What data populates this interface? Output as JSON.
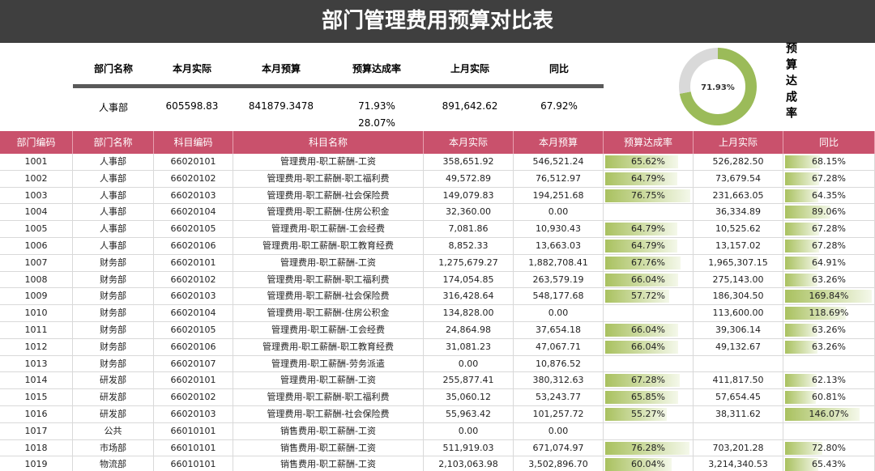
{
  "title": "部门管理费用预算对比表",
  "summary": {
    "headers": [
      "部门名称",
      "本月实际",
      "本月预算",
      "预算达成率",
      "上月实际",
      "同比"
    ],
    "values": [
      "人事部",
      "605598.83",
      "841879.3478",
      "71.93%",
      "891,642.62",
      "67.92%"
    ],
    "remainder": "28.07%"
  },
  "donut": {
    "values": [
      71.93,
      28.07
    ],
    "value_labels": [
      "71.93%"
    ],
    "colors": [
      "#9bbb59",
      "#d9d9d9"
    ]
  },
  "side_label": "预算达成率",
  "table": {
    "columns": [
      "部门编码",
      "部门名称",
      "科目编码",
      "科目名称",
      "本月实际",
      "本月预算",
      "预算达成率",
      "上月实际",
      "同比"
    ],
    "rows": [
      [
        "1001",
        "人事部",
        "66020101",
        "管理费用-职工薪酬-工资",
        "358,651.92",
        "546,521.24",
        {
          "value": 65.62,
          "label": "65.62%"
        },
        "526,282.50",
        {
          "value": 68.15,
          "label": "68.15%"
        }
      ],
      [
        "1002",
        "人事部",
        "66020102",
        "管理费用-职工薪酬-职工福利费",
        "49,572.89",
        "76,512.97",
        {
          "value": 64.79,
          "label": "64.79%"
        },
        "73,679.54",
        {
          "value": 67.28,
          "label": "67.28%"
        }
      ],
      [
        "1003",
        "人事部",
        "66020103",
        "管理费用-职工薪酬-社会保险费",
        "149,079.83",
        "194,251.68",
        {
          "value": 76.75,
          "label": "76.75%"
        },
        "231,663.05",
        {
          "value": 64.35,
          "label": "64.35%"
        }
      ],
      [
        "1004",
        "人事部",
        "66020104",
        "管理费用-职工薪酬-住房公积金",
        "32,360.00",
        "0.00",
        null,
        "36,334.89",
        {
          "value": 89.06,
          "label": "89.06%"
        }
      ],
      [
        "1005",
        "人事部",
        "66020105",
        "管理费用-职工薪酬-工会经费",
        "7,081.86",
        "10,930.43",
        {
          "value": 64.79,
          "label": "64.79%"
        },
        "10,525.62",
        {
          "value": 67.28,
          "label": "67.28%"
        }
      ],
      [
        "1006",
        "人事部",
        "66020106",
        "管理费用-职工薪酬-职工教育经费",
        "8,852.33",
        "13,663.03",
        {
          "value": 64.79,
          "label": "64.79%"
        },
        "13,157.02",
        {
          "value": 67.28,
          "label": "67.28%"
        }
      ],
      [
        "1007",
        "财务部",
        "66020101",
        "管理费用-职工薪酬-工资",
        "1,275,679.27",
        "1,882,708.41",
        {
          "value": 67.76,
          "label": "67.76%"
        },
        "1,965,307.15",
        {
          "value": 64.91,
          "label": "64.91%"
        }
      ],
      [
        "1008",
        "财务部",
        "66020102",
        "管理费用-职工薪酬-职工福利费",
        "174,054.85",
        "263,579.19",
        {
          "value": 66.04,
          "label": "66.04%"
        },
        "275,143.00",
        {
          "value": 63.26,
          "label": "63.26%"
        }
      ],
      [
        "1009",
        "财务部",
        "66020103",
        "管理费用-职工薪酬-社会保险费",
        "316,428.64",
        "548,177.68",
        {
          "value": 57.72,
          "label": "57.72%"
        },
        "186,304.50",
        {
          "value": 169.84,
          "label": "169.84%"
        }
      ],
      [
        "1010",
        "财务部",
        "66020104",
        "管理费用-职工薪酬-住房公积金",
        "134,828.00",
        "0.00",
        null,
        "113,600.00",
        {
          "value": 118.69,
          "label": "118.69%"
        }
      ],
      [
        "1011",
        "财务部",
        "66020105",
        "管理费用-职工薪酬-工会经费",
        "24,864.98",
        "37,654.18",
        {
          "value": 66.04,
          "label": "66.04%"
        },
        "39,306.14",
        {
          "value": 63.26,
          "label": "63.26%"
        }
      ],
      [
        "1012",
        "财务部",
        "66020106",
        "管理费用-职工薪酬-职工教育经费",
        "31,081.23",
        "47,067.71",
        {
          "value": 66.04,
          "label": "66.04%"
        },
        "49,132.67",
        {
          "value": 63.26,
          "label": "63.26%"
        }
      ],
      [
        "1013",
        "财务部",
        "66020107",
        "管理费用-职工薪酬-劳务派遣",
        "0.00",
        "10,876.52",
        null,
        null,
        null
      ],
      [
        "1014",
        "研发部",
        "66020101",
        "管理费用-职工薪酬-工资",
        "255,877.41",
        "380,312.63",
        {
          "value": 67.28,
          "label": "67.28%"
        },
        "411,817.50",
        {
          "value": 62.13,
          "label": "62.13%"
        }
      ],
      [
        "1015",
        "研发部",
        "66020102",
        "管理费用-职工薪酬-职工福利费",
        "35,060.12",
        "53,243.77",
        {
          "value": 65.85,
          "label": "65.85%"
        },
        "57,654.45",
        {
          "value": 60.81,
          "label": "60.81%"
        }
      ],
      [
        "1016",
        "研发部",
        "66020103",
        "管理费用-职工薪酬-社会保险费",
        "55,963.42",
        "101,257.72",
        {
          "value": 55.27,
          "label": "55.27%"
        },
        "38,311.62",
        {
          "value": 146.07,
          "label": "146.07%"
        }
      ],
      [
        "1017",
        "公共",
        "66010101",
        "销售费用-职工薪酬-工资",
        "0.00",
        "0.00",
        null,
        null,
        null
      ],
      [
        "1018",
        "市场部",
        "66010101",
        "销售费用-职工薪酬-工资",
        "511,919.03",
        "671,074.97",
        {
          "value": 76.28,
          "label": "76.28%"
        },
        "703,201.28",
        {
          "value": 72.8,
          "label": "72.80%"
        }
      ],
      [
        "1019",
        "物流部",
        "66010101",
        "销售费用-职工薪酬-工资",
        "2,103,063.98",
        "3,502,896.70",
        {
          "value": 60.04,
          "label": "60.04%"
        },
        "3,214,340.53",
        {
          "value": 65.43,
          "label": "65.43%"
        }
      ]
    ]
  }
}
